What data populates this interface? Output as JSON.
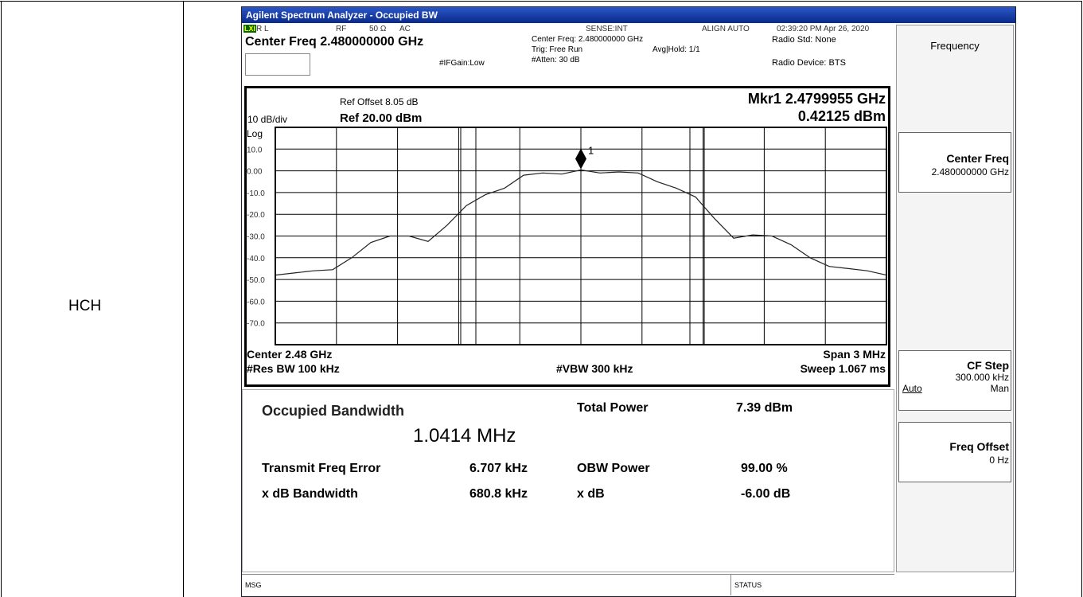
{
  "table": {
    "row_label": "HCH"
  },
  "window_title": "Agilent Spectrum Analyzer - Occupied BW",
  "header": {
    "rl": "R L",
    "rf": "RF",
    "impedance": "50 Ω",
    "coupling": "AC",
    "sense": "SENSE:INT",
    "align": "ALIGN AUTO",
    "datetime": "02:39:20 PM Apr 26, 2020",
    "center_freq": "Center Freq 2.480000000 GHz",
    "center_freq_info": "Center Freq: 2.480000000 GHz",
    "trig": "Trig: Free Run",
    "avg_hold": "Avg|Hold: 1/1",
    "atten": "#Atten: 30 dB",
    "ifgain": "#IFGain:Low",
    "radio_std": "Radio Std: None",
    "radio_device": "Radio Device: BTS"
  },
  "plot": {
    "ref_offset": "Ref Offset 8.05 dB",
    "scale": "10 dB/div",
    "ref_level": "Ref 20.00 dBm",
    "log": "Log",
    "marker_freq": "Mkr1 2.4799955 GHz",
    "marker_level": "0.42125 dBm",
    "marker_id": "1",
    "center": "Center 2.48 GHz",
    "res_bw": "#Res BW 100 kHz",
    "vbw": "#VBW 300 kHz",
    "span": "Span 3 MHz",
    "sweep": "Sweep 1.067 ms",
    "ylim": [
      -80,
      20
    ],
    "yticks": [
      {
        "value": 10,
        "label": "10.0"
      },
      {
        "value": 0,
        "label": "0.00"
      },
      {
        "value": -10,
        "label": "-10.0"
      },
      {
        "value": -20,
        "label": "-20.0"
      },
      {
        "value": -30,
        "label": "-30.0"
      },
      {
        "value": -40,
        "label": "-40.0"
      },
      {
        "value": -50,
        "label": "-50.0"
      },
      {
        "value": -60,
        "label": "-60.0"
      },
      {
        "value": -70,
        "label": "-70.0"
      }
    ],
    "trace": [
      -48,
      -47,
      -46,
      -45.5,
      -40,
      -33,
      -30,
      -30,
      -32.5,
      -25,
      -16,
      -11,
      -8,
      -2,
      -1,
      -1.5,
      0.4,
      -1,
      -0.5,
      -1,
      -5,
      -8,
      -12,
      -22,
      -31,
      -29.5,
      -30,
      -34,
      -40,
      -44,
      -45,
      -46,
      -48
    ]
  },
  "results": {
    "obw_label": "Occupied Bandwidth",
    "obw_value": "1.0414 MHz",
    "total_power_label": "Total Power",
    "total_power_value": "7.39 dBm",
    "freq_error_label": "Transmit Freq Error",
    "freq_error_value": "6.707 kHz",
    "obw_power_label": "OBW Power",
    "obw_power_value": "99.00 %",
    "xdb_bw_label": "x dB Bandwidth",
    "xdb_bw_value": "680.8 kHz",
    "xdb_label": "x dB",
    "xdb_value": "-6.00 dB"
  },
  "status_bar": {
    "msg": "MSG",
    "status": "STATUS"
  },
  "softkeys": {
    "menu": "Frequency",
    "center_freq": "Center Freq",
    "center_freq_value": "2.480000000 GHz",
    "cf_step": "CF Step",
    "cf_step_value": "300.000 kHz",
    "auto": "Auto",
    "man": "Man",
    "freq_offset": "Freq Offset",
    "freq_offset_value": "0 Hz"
  }
}
